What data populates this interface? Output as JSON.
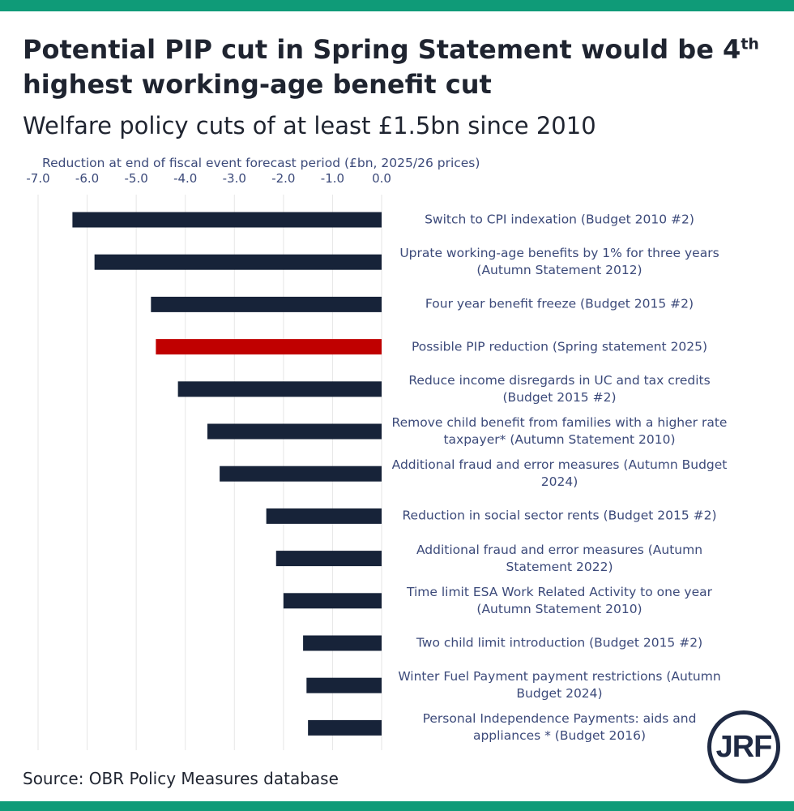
{
  "title_main": "Potential PIP cut in Spring Statement would be 4",
  "title_sup": "th",
  "title_line2": "highest working-age benefit cut",
  "subtitle": "Welfare policy cuts of at least £1.5bn since 2010",
  "source": "Source: OBR Policy Measures database",
  "logo_text": "JRF",
  "colors": {
    "band": "#0f9b78",
    "bar": "#172339",
    "highlight": "#c00000",
    "grid": "#e6e6e6"
  },
  "chart_data": {
    "type": "bar",
    "orientation": "horizontal",
    "xlabel": "Reduction at end of fiscal event forecast period (£bn, 2025/26 prices)",
    "xlim": [
      -7.0,
      0.0
    ],
    "xticks": [
      "-7.0",
      "-6.0",
      "-5.0",
      "-4.0",
      "-3.0",
      "-2.0",
      "-1.0",
      "0.0"
    ],
    "grid": true,
    "categories": [
      "Switch to CPI indexation (Budget 2010 #2)",
      "Uprate working-age benefits by 1% for three years (Autumn Statement 2012)",
      "Four year benefit freeze (Budget 2015 #2)",
      "Possible PIP reduction (Spring statement 2025)",
      "Reduce income disregards in UC and tax credits (Budget 2015 #2)",
      "Remove child benefit from families with a higher rate taxpayer* (Autumn Statement 2010)",
      "Additional fraud and error measures (Autumn Budget 2024)",
      "Reduction in social sector rents (Budget 2015 #2)",
      "Additional fraud and error measures (Autumn Statement 2022)",
      "Time limit ESA Work Related Activity to one year (Autumn Statement 2010)",
      "Two child limit introduction (Budget 2015 #2)",
      "Winter Fuel Payment payment restrictions (Autumn Budget 2024)",
      "Personal Independence Payments: aids and appliances * (Budget 2016)"
    ],
    "values": [
      -6.3,
      -5.85,
      -4.7,
      -4.6,
      -4.15,
      -3.55,
      -3.3,
      -2.35,
      -2.15,
      -2.0,
      -1.6,
      -1.53,
      -1.5
    ],
    "highlight_index": 3
  }
}
